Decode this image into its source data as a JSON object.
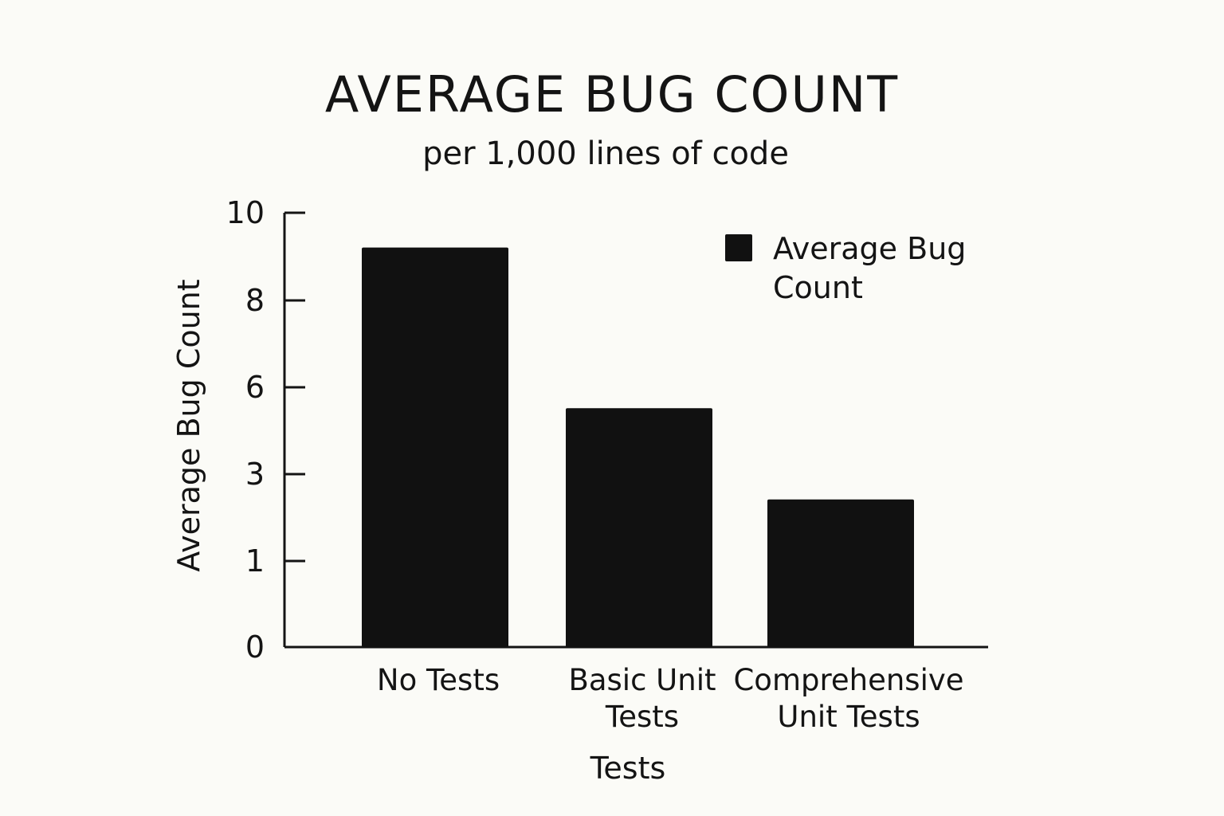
{
  "chart_data": {
    "type": "bar",
    "title": "AVERAGE BUG COUNT",
    "subtitle": "per 1,000 lines of code",
    "xlabel": "Tests",
    "ylabel": "Average Bug Count",
    "categories": [
      [
        "No Tests"
      ],
      [
        "Basic Unit",
        "Tests"
      ],
      [
        "Comprehensive",
        "Unit Tests"
      ]
    ],
    "series": [
      {
        "name": "Average Bug Count",
        "legend_lines": [
          "Average Bug",
          "Count"
        ],
        "values": [
          9.2,
          5.5,
          3.4
        ],
        "color": "#111111"
      }
    ],
    "y_tick_labels": [
      "0",
      "1",
      "3",
      "6",
      "8",
      "10"
    ],
    "grid": false,
    "legend_position": "top-right"
  }
}
